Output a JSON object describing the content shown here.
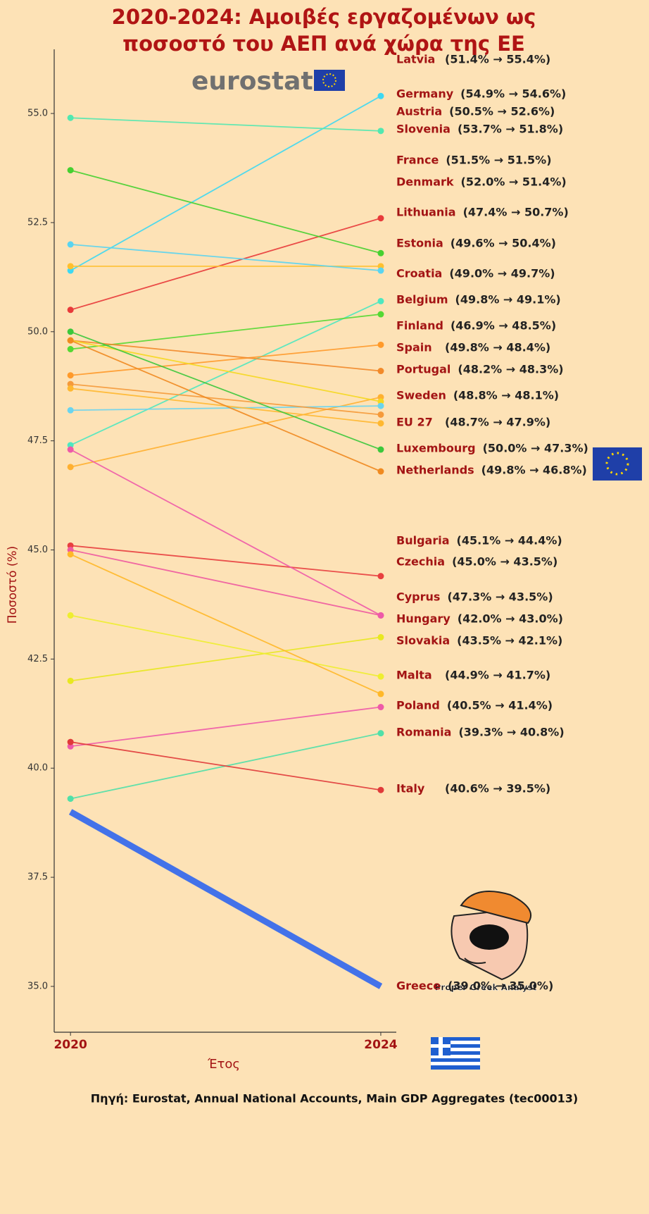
{
  "chart_data": {
    "type": "slope",
    "title": [
      "2020-2024: Αμοιβές εργαζομένων ως",
      "ποσοστό του ΑΕΠ ανά χώρα της ΕΕ"
    ],
    "logo": "eurostat",
    "mascot": "Proper Greek Analyst",
    "source": "Πηγή: Eurostat, Annual National Accounts, Main GDP Aggregates (tec00013)",
    "xlabel": "Έτος",
    "ylabel": "Ποσοστό (%)",
    "x": [
      2020,
      2024
    ],
    "xlim": [
      2019.79,
      2024.2
    ],
    "xticks": [
      2020,
      2024
    ],
    "ylim": [
      33.95,
      56.47
    ],
    "yticks": [
      {
        "value": 35,
        "label": "35.0"
      },
      {
        "value": 37.5,
        "label": "37.5"
      },
      {
        "value": 40,
        "label": "40.0"
      },
      {
        "value": 42.5,
        "label": "42.5"
      },
      {
        "value": 45,
        "label": "45.0"
      },
      {
        "value": 47.5,
        "label": "47.5"
      },
      {
        "value": 50,
        "label": "50.0"
      },
      {
        "value": 52.5,
        "label": "52.5"
      },
      {
        "value": 55,
        "label": "55.0"
      }
    ],
    "series": [
      {
        "name": "Latvia",
        "color": "#3dd8f2",
        "values": [
          51.4,
          55.4
        ],
        "annotation": "(51.4% → 55.4%)"
      },
      {
        "name": "Germany",
        "color": "#52e8b0",
        "values": [
          54.9,
          54.6
        ],
        "annotation": "(54.9% → 54.6%)"
      },
      {
        "name": "Austria",
        "color": "#e83a3a",
        "values": [
          50.5,
          52.6
        ],
        "annotation": "(50.5% → 52.6%)"
      },
      {
        "name": "Slovenia",
        "color": "#46d030",
        "values": [
          53.7,
          51.8
        ],
        "annotation": "(53.7% → 51.8%)"
      },
      {
        "name": "France",
        "color": "#ffc02e",
        "values": [
          51.5,
          51.5
        ],
        "annotation": "(51.5% → 51.5%)"
      },
      {
        "name": "Denmark",
        "color": "#5ad4f0",
        "values": [
          52.0,
          51.4
        ],
        "annotation": "(52.0% → 51.4%)"
      },
      {
        "name": "Lithuania",
        "color": "#4ee8c0",
        "values": [
          47.4,
          50.7
        ],
        "annotation": "(47.4% → 50.7%)"
      },
      {
        "name": "Estonia",
        "color": "#55d833",
        "values": [
          49.6,
          50.4
        ],
        "annotation": "(49.6% → 50.4%)"
      },
      {
        "name": "Croatia",
        "color": "#ff9a2a",
        "values": [
          49.0,
          49.7
        ],
        "annotation": "(49.0% → 49.7%)"
      },
      {
        "name": "Belgium",
        "color": "#f28a2a",
        "values": [
          49.8,
          49.1
        ],
        "annotation": "(49.8% → 49.1%)"
      },
      {
        "name": "Finland",
        "color": "#ffb030",
        "values": [
          46.9,
          48.5
        ],
        "annotation": "(46.9% → 48.5%)"
      },
      {
        "name": "Spain",
        "color": "#f5d820",
        "values": [
          49.8,
          48.4
        ],
        "annotation": "(49.8% → 48.4%)"
      },
      {
        "name": "Portugal",
        "color": "#6ad4ee",
        "values": [
          48.2,
          48.3
        ],
        "annotation": "(48.2% → 48.3%)"
      },
      {
        "name": "Sweden",
        "color": "#f59a3a",
        "values": [
          48.8,
          48.1
        ],
        "annotation": "(48.8% → 48.1%)"
      },
      {
        "name": "EU 27",
        "color": "#ffb830",
        "values": [
          48.7,
          47.9
        ],
        "annotation": "(48.7% → 47.9%)"
      },
      {
        "name": "Luxembourg",
        "color": "#3cc83c",
        "values": [
          50.0,
          47.3
        ],
        "annotation": "(50.0% → 47.3%)"
      },
      {
        "name": "Netherlands",
        "color": "#f08a20",
        "values": [
          49.8,
          46.8
        ],
        "annotation": "(49.8% → 46.8%)"
      },
      {
        "name": "Bulgaria",
        "color": "#e84040",
        "values": [
          45.1,
          44.4
        ],
        "annotation": "(45.1% → 44.4%)"
      },
      {
        "name": "Czechia",
        "color": "#ee5aa0",
        "values": [
          45.0,
          43.5
        ],
        "annotation": "(45.0% → 43.5%)"
      },
      {
        "name": "Cyprus",
        "color": "#ee5aa8",
        "values": [
          47.3,
          43.5
        ],
        "annotation": "(47.3% → 43.5%)"
      },
      {
        "name": "Hungary",
        "color": "#e8e820",
        "values": [
          42.0,
          43.0
        ],
        "annotation": "(42.0% → 43.0%)"
      },
      {
        "name": "Slovakia",
        "color": "#eeee30",
        "values": [
          43.5,
          42.1
        ],
        "annotation": "(43.5% → 42.1%)"
      },
      {
        "name": "Malta",
        "color": "#ffb828",
        "values": [
          44.9,
          41.7
        ],
        "annotation": "(44.9% → 41.7%)"
      },
      {
        "name": "Poland",
        "color": "#ee5aa8",
        "values": [
          40.5,
          41.4
        ],
        "annotation": "(40.5% → 41.4%)"
      },
      {
        "name": "Romania",
        "color": "#50e0a8",
        "values": [
          39.3,
          40.8
        ],
        "annotation": "(39.3% → 40.8%)"
      },
      {
        "name": "Italy",
        "color": "#e03a3a",
        "values": [
          40.6,
          39.5
        ],
        "annotation": "(40.6% → 39.5%)"
      },
      {
        "name": "Greece",
        "color": "#2f66ee",
        "values": [
          39.0,
          35.0
        ],
        "annotation": "(39.0% → 35.0%)",
        "highlight": true
      }
    ]
  }
}
